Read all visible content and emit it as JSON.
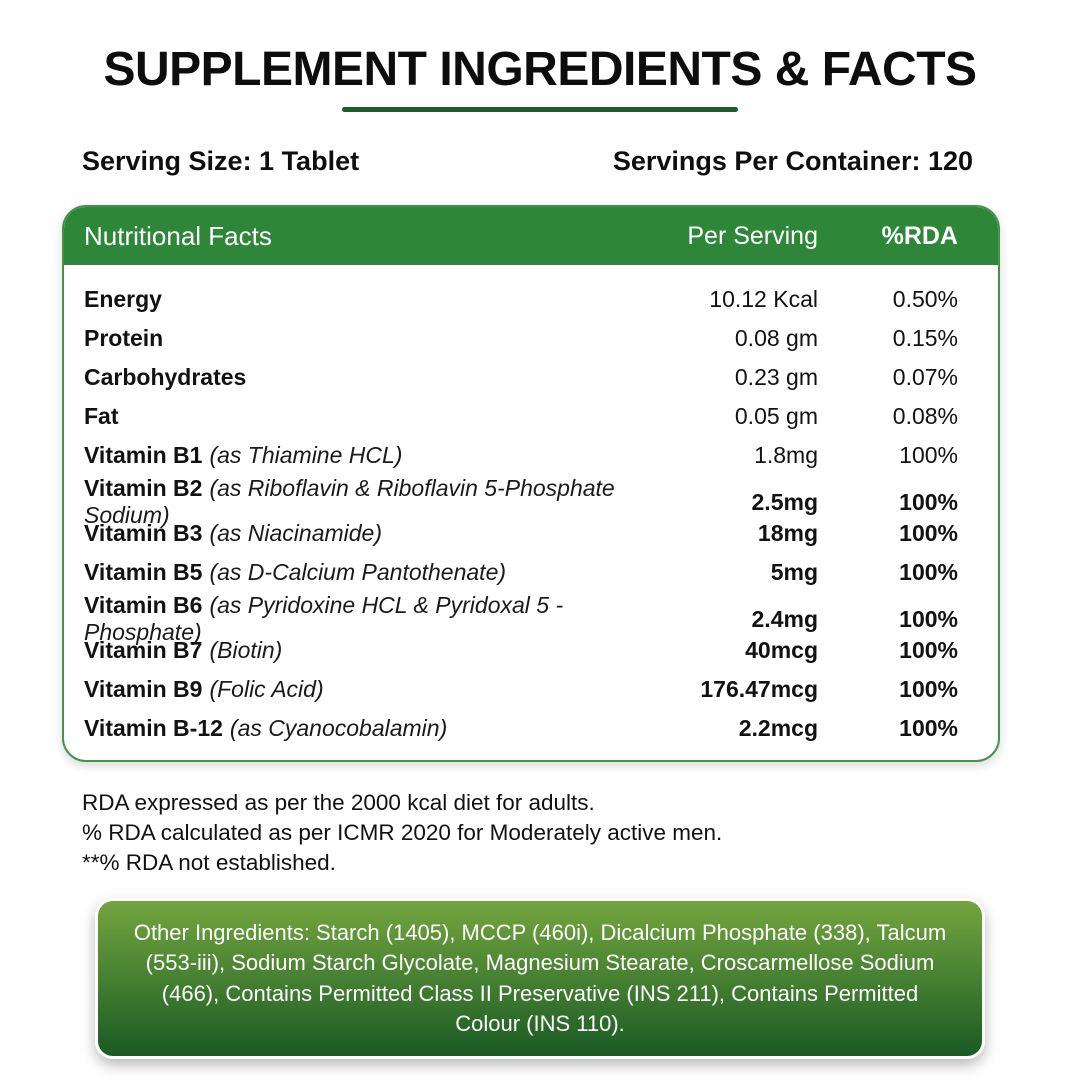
{
  "page": {
    "title": "SUPPLEMENT INGREDIENTS & FACTS",
    "serving_size": "Serving Size: 1 Tablet",
    "servings_per_container": "Servings Per Container: 120"
  },
  "table": {
    "header": {
      "name": "Nutritional Facts",
      "per_serving": "Per Serving",
      "rda": "%RDA"
    },
    "rows": [
      {
        "name": "Energy",
        "detail": "",
        "per_serving": "10.12 Kcal",
        "rda": "0.50%",
        "bold_values": false
      },
      {
        "name": "Protein",
        "detail": "",
        "per_serving": "0.08 gm",
        "rda": "0.15%",
        "bold_values": false
      },
      {
        "name": "Carbohydrates",
        "detail": "",
        "per_serving": "0.23 gm",
        "rda": "0.07%",
        "bold_values": false
      },
      {
        "name": "Fat",
        "detail": "",
        "per_serving": "0.05 gm",
        "rda": "0.08%",
        "bold_values": false
      },
      {
        "name": "Vitamin B1",
        "detail": "(as Thiamine HCL)",
        "per_serving": "1.8mg",
        "rda": "100%",
        "bold_values": false
      },
      {
        "name": "Vitamin B2",
        "detail": "(as Riboflavin & Riboflavin 5-Phosphate Sodium)",
        "per_serving": "2.5mg",
        "rda": "100%",
        "bold_values": true
      },
      {
        "name": "Vitamin B3",
        "detail": "(as Niacinamide)",
        "per_serving": "18mg",
        "rda": "100%",
        "bold_values": true
      },
      {
        "name": "Vitamin B5",
        "detail": "(as D-Calcium Pantothenate)",
        "per_serving": "5mg",
        "rda": "100%",
        "bold_values": true
      },
      {
        "name": "Vitamin B6",
        "detail": "(as Pyridoxine HCL & Pyridoxal 5 - Phosphate)",
        "per_serving": "2.4mg",
        "rda": "100%",
        "bold_values": true
      },
      {
        "name": "Vitamin B7",
        "detail": "(Biotin)",
        "per_serving": "40mcg",
        "rda": "100%",
        "bold_values": true
      },
      {
        "name": "Vitamin B9",
        "detail": "(Folic Acid)",
        "per_serving": "176.47mcg",
        "rda": "100%",
        "bold_values": true
      },
      {
        "name": "Vitamin B-12",
        "detail": "(as Cyanocobalamin)",
        "per_serving": "2.2mcg",
        "rda": "100%",
        "bold_values": true
      }
    ]
  },
  "notes": [
    "RDA expressed as per the 2000 kcal diet for adults.",
    "% RDA calculated as per ICMR 2020 for Moderately active men.",
    "**% RDA not established."
  ],
  "other_ingredients": "Other Ingredients: Starch (1405), MCCP (460i), Dicalcium Phosphate (338), Talcum (553-iii), Sodium Starch Glycolate, Magnesium Stearate, Croscarmellose Sodium (466), Contains Permitted Class II Preservative (INS 211), Contains Permitted Colour (INS 110).",
  "colors": {
    "header_green": "#2e8639",
    "underline_green": "#1b5e2a",
    "card_border_green": "#44924e",
    "gradient_top": "#74a53e",
    "gradient_bottom": "#1a5a24",
    "text_black": "#121212"
  }
}
